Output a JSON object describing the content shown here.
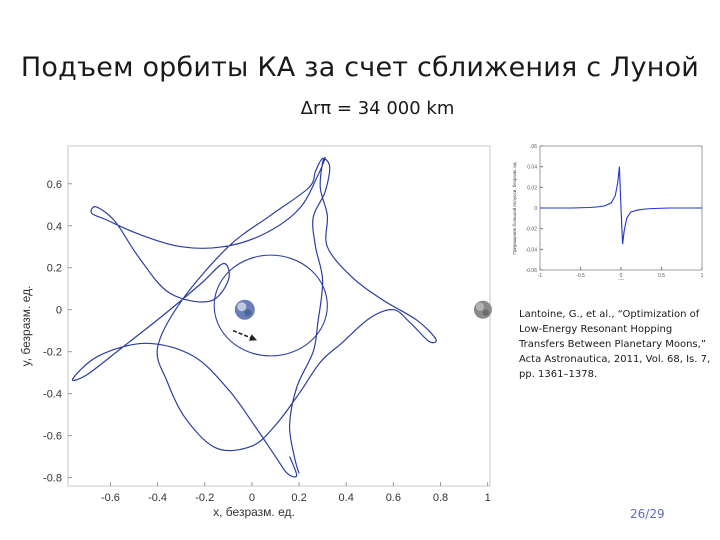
{
  "slide": {
    "title": "Подъем орбиты КА за счет сближения с Луной",
    "subtitle": "Δrπ = 34 000 km",
    "citation": "Lantoine, G., et al., “Optimization of Low-Energy Resonant Hopping Transfers Between Planetary Moons,” Acta Astronautica, 2011, Vol. 68, Is. 7, pp. 1361–1378.",
    "page_number": "26/29"
  },
  "chart_data": [
    {
      "type": "line",
      "xlabel": "x, безразм. ед.",
      "ylabel": "y, безразм. ед.",
      "xlim": [
        -0.78,
        1.01
      ],
      "ylim": [
        -0.84,
        0.78
      ],
      "xticks": [
        -0.6,
        -0.4,
        -0.2,
        0,
        0.2,
        0.4,
        0.6,
        0.8,
        1
      ],
      "yticks": [
        0.6,
        0.4,
        0.2,
        0,
        -0.2,
        -0.4,
        -0.6,
        -0.8
      ],
      "xtick_labels": [
        "-0.6",
        "-0.4",
        "-0.2",
        "0",
        "0.2",
        "0.4",
        "0.6",
        "0.8",
        "1"
      ],
      "ytick_labels": [
        "0.6",
        "0.4",
        "0.2",
        "0",
        "-0.2",
        "-0.4",
        "-0.6",
        "-0.8"
      ],
      "grid": false,
      "series": [
        {
          "color": "#2c3e9e",
          "trajectory": [
            [
              0.16,
              -0.7
            ],
            [
              0.19,
              -0.79
            ],
            [
              0.15,
              -0.78
            ],
            [
              0.1,
              -0.7
            ],
            [
              0.01,
              -0.55
            ],
            [
              -0.1,
              -0.38
            ],
            [
              -0.25,
              -0.22
            ],
            [
              -0.45,
              -0.16
            ],
            [
              -0.65,
              -0.22
            ],
            [
              -0.76,
              -0.33
            ],
            [
              -0.7,
              -0.31
            ],
            [
              -0.55,
              -0.18
            ],
            [
              -0.38,
              -0.03
            ],
            [
              -0.22,
              0.12
            ],
            [
              -0.12,
              0.22
            ],
            [
              -0.1,
              0.14
            ],
            [
              -0.18,
              0.04
            ],
            [
              -0.35,
              0.08
            ],
            [
              -0.48,
              0.25
            ],
            [
              -0.58,
              0.42
            ],
            [
              -0.66,
              0.49
            ],
            [
              -0.68,
              0.46
            ],
            [
              -0.62,
              0.43
            ],
            [
              -0.48,
              0.36
            ],
            [
              -0.3,
              0.3
            ],
            [
              -0.12,
              0.3
            ],
            [
              0.05,
              0.36
            ],
            [
              0.2,
              0.48
            ],
            [
              0.28,
              0.64
            ],
            [
              0.31,
              0.72
            ],
            [
              0.3,
              0.7
            ],
            [
              0.29,
              0.58
            ],
            [
              0.32,
              0.45
            ],
            [
              0.32,
              0.3
            ],
            [
              0.42,
              0.16
            ],
            [
              0.55,
              0.05
            ],
            [
              0.7,
              -0.05
            ],
            [
              0.78,
              -0.14
            ],
            [
              0.75,
              -0.15
            ],
            [
              0.67,
              -0.06
            ],
            [
              0.6,
              0.0
            ],
            [
              0.5,
              -0.04
            ],
            [
              0.38,
              -0.16
            ],
            [
              0.29,
              -0.25
            ],
            [
              0.2,
              -0.4
            ],
            [
              0.1,
              -0.55
            ],
            [
              0.0,
              -0.65
            ],
            [
              -0.15,
              -0.66
            ],
            [
              -0.28,
              -0.52
            ],
            [
              -0.36,
              -0.34
            ],
            [
              -0.4,
              -0.18
            ],
            [
              -0.3,
              0.04
            ],
            [
              -0.1,
              0.3
            ],
            [
              0.08,
              0.45
            ],
            [
              0.24,
              0.58
            ],
            [
              0.27,
              0.66
            ],
            [
              0.3,
              0.72
            ],
            [
              0.33,
              0.68
            ],
            [
              0.31,
              0.56
            ],
            [
              0.26,
              0.44
            ],
            [
              0.27,
              0.3
            ],
            [
              0.3,
              0.14
            ],
            [
              0.28,
              -0.06
            ],
            [
              0.26,
              -0.2
            ],
            [
              0.19,
              -0.37
            ],
            [
              0.16,
              -0.55
            ],
            [
              0.18,
              -0.7
            ],
            [
              0.2,
              -0.78
            ]
          ],
          "loop": {
            "center": [
              0.08,
              0.02
            ],
            "r": 0.24
          }
        }
      ],
      "bodies": [
        {
          "label": "",
          "x": -0.03,
          "y": 0.0,
          "color": "#6a7fb5"
        },
        {
          "label": "",
          "x": 0.98,
          "y": 0.0,
          "color": "#8a8a8a"
        }
      ],
      "annotation": {
        "type": "arrow",
        "from": [
          -0.08,
          -0.1
        ],
        "to": [
          0.01,
          -0.14
        ]
      }
    },
    {
      "type": "line",
      "ylabel": "Приращение большой полуоси, безразм. ед.",
      "xlabel": "м/с",
      "xlim": [
        -1,
        1
      ],
      "ylim": [
        -0.06,
        0.06
      ],
      "xticks": [
        -1,
        -0.5,
        0,
        0.5,
        1
      ],
      "yticks": [
        0.06,
        0.04,
        0.02,
        0,
        -0.02,
        -0.04,
        -0.06
      ],
      "xtick_labels": [
        "-1",
        "-0.5",
        "0",
        "0.5",
        "1"
      ],
      "ytick_labels": [
        ".06",
        "0.04",
        "0.02",
        "0",
        "-0.02",
        "-0.04",
        "-0.06"
      ],
      "series": [
        {
          "color": "#2233cc",
          "x": [
            -1,
            -0.8,
            -0.6,
            -0.4,
            -0.3,
            -0.2,
            -0.12,
            -0.07,
            -0.04,
            -0.02,
            0,
            0.02,
            0.04,
            0.07,
            0.12,
            0.2,
            0.3,
            0.4,
            0.6,
            0.8,
            1
          ],
          "y": [
            0,
            0,
            0,
            0.0005,
            0.001,
            0.002,
            0.005,
            0.012,
            0.025,
            0.04,
            0.0,
            -0.035,
            -0.022,
            -0.01,
            -0.004,
            -0.002,
            -0.001,
            -0.0005,
            0,
            0,
            0
          ]
        }
      ]
    }
  ]
}
